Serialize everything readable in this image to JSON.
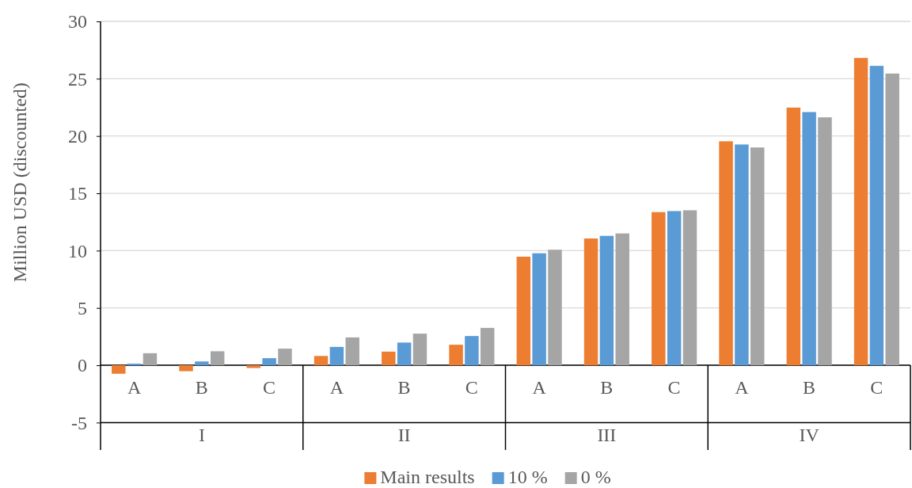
{
  "chart_data": {
    "type": "bar",
    "ylabel": "Million USD (discounted)",
    "categories": [
      "A",
      "B",
      "C",
      "A",
      "B",
      "C",
      "A",
      "B",
      "C",
      "A",
      "B",
      "C"
    ],
    "annotations": [
      "I",
      "II",
      "III",
      "IV"
    ],
    "series": [
      {
        "name": "Main results",
        "color": "#ed7d31",
        "values": [
          -0.74,
          -0.52,
          -0.24,
          0.81,
          1.19,
          1.79,
          9.47,
          11.06,
          13.36,
          19.54,
          22.48,
          26.81
        ]
      },
      {
        "name": "10 %",
        "color": "#5b9bd5",
        "values": [
          0.14,
          0.33,
          0.62,
          1.6,
          1.98,
          2.55,
          9.77,
          11.29,
          13.45,
          19.26,
          22.09,
          26.12
        ]
      },
      {
        "name": "0 %",
        "color": "#a5a5a5",
        "values": [
          1.05,
          1.22,
          1.45,
          2.43,
          2.76,
          3.26,
          10.08,
          11.5,
          13.52,
          19.0,
          21.63,
          25.45
        ]
      }
    ],
    "ylim": [
      -5,
      30
    ],
    "yticks": [
      -5,
      0,
      5,
      10,
      15,
      20,
      25,
      30
    ],
    "grid": "y",
    "legend": "bottom"
  }
}
